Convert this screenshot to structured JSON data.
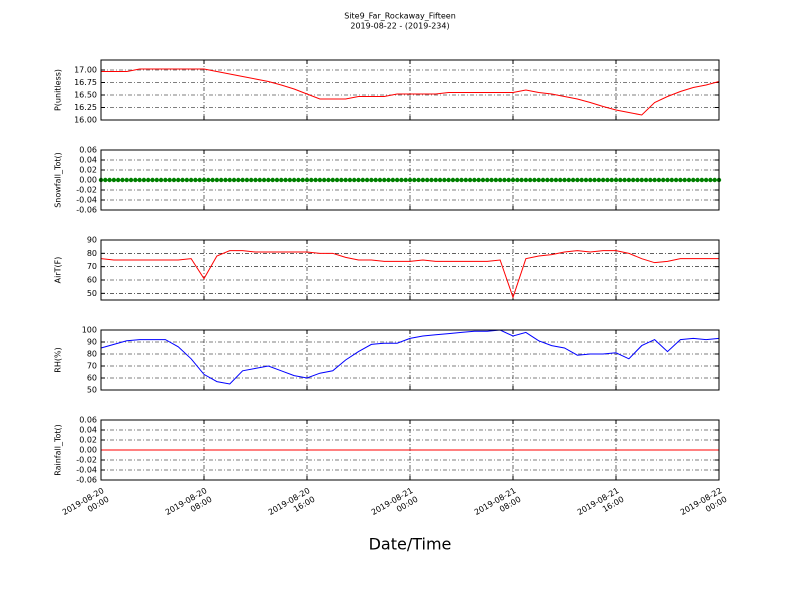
{
  "figure": {
    "title": "Site9_Far_Rockaway_Fifteen",
    "subtitle": "2019-08-22 - (2019-234)",
    "xlabel": "Date/Time"
  },
  "chart_data": [
    {
      "type": "line",
      "ylabel": "P(unitless)",
      "grid": true,
      "x": [
        "2019-08-20 00:00",
        "2019-08-20 01:00",
        "2019-08-20 02:00",
        "2019-08-20 03:00",
        "2019-08-20 04:00",
        "2019-08-20 05:00",
        "2019-08-20 06:00",
        "2019-08-20 07:00",
        "2019-08-20 08:00",
        "2019-08-20 09:00",
        "2019-08-20 10:00",
        "2019-08-20 11:00",
        "2019-08-20 12:00",
        "2019-08-20 13:00",
        "2019-08-20 14:00",
        "2019-08-20 15:00",
        "2019-08-20 16:00",
        "2019-08-20 17:00",
        "2019-08-20 18:00",
        "2019-08-20 19:00",
        "2019-08-20 20:00",
        "2019-08-20 21:00",
        "2019-08-20 22:00",
        "2019-08-20 23:00",
        "2019-08-21 00:00",
        "2019-08-21 01:00",
        "2019-08-21 02:00",
        "2019-08-21 03:00",
        "2019-08-21 04:00",
        "2019-08-21 05:00",
        "2019-08-21 06:00",
        "2019-08-21 07:00",
        "2019-08-21 08:00",
        "2019-08-21 09:00",
        "2019-08-21 10:00",
        "2019-08-21 11:00",
        "2019-08-21 12:00",
        "2019-08-21 13:00",
        "2019-08-21 14:00",
        "2019-08-21 15:00",
        "2019-08-21 16:00",
        "2019-08-21 17:00",
        "2019-08-21 18:00",
        "2019-08-21 19:00",
        "2019-08-21 20:00",
        "2019-08-21 21:00",
        "2019-08-21 22:00",
        "2019-08-21 23:00",
        "2019-08-22 00:00"
      ],
      "series": [
        {
          "color": "#ff0000",
          "values": [
            16.97,
            16.97,
            16.97,
            17.02,
            17.02,
            17.02,
            17.02,
            17.02,
            17.02,
            16.97,
            16.92,
            16.87,
            16.82,
            16.77,
            16.7,
            16.62,
            16.52,
            16.42,
            16.42,
            16.42,
            16.47,
            16.47,
            16.47,
            16.52,
            16.52,
            16.52,
            16.52,
            16.55,
            16.55,
            16.55,
            16.55,
            16.55,
            16.55,
            16.6,
            16.55,
            16.52,
            16.47,
            16.42,
            16.35,
            16.27,
            16.2,
            16.15,
            16.1,
            16.35,
            16.47,
            16.57,
            16.65,
            16.7,
            16.77
          ]
        }
      ],
      "xlim": [
        "2019-08-20 00:00",
        "2019-08-22 00:00"
      ],
      "xticks": [
        "2019-08-20 00:00",
        "2019-08-20 08:00",
        "2019-08-20 16:00",
        "2019-08-21 00:00",
        "2019-08-21 08:00",
        "2019-08-21 16:00",
        "2019-08-22 00:00"
      ],
      "ylim": [
        16.0,
        17.2
      ],
      "yticks": [
        {
          "value": 16.0,
          "label": "16.00"
        },
        16.25,
        {
          "value": 16.5,
          "label": "16.50"
        },
        16.75,
        {
          "value": 17.0,
          "label": "17.00"
        }
      ]
    },
    {
      "type": "scatter",
      "ylabel": "Snowfall_Tot()",
      "grid": true,
      "x": [
        "2019-08-20 00:00",
        "2019-08-20 01:00",
        "2019-08-20 02:00",
        "2019-08-20 03:00",
        "2019-08-20 04:00",
        "2019-08-20 05:00",
        "2019-08-20 06:00",
        "2019-08-20 07:00",
        "2019-08-20 08:00",
        "2019-08-20 09:00",
        "2019-08-20 10:00",
        "2019-08-20 11:00",
        "2019-08-20 12:00",
        "2019-08-20 13:00",
        "2019-08-20 14:00",
        "2019-08-20 15:00",
        "2019-08-20 16:00",
        "2019-08-20 17:00",
        "2019-08-20 18:00",
        "2019-08-20 19:00",
        "2019-08-20 20:00",
        "2019-08-20 21:00",
        "2019-08-20 22:00",
        "2019-08-20 23:00",
        "2019-08-21 00:00",
        "2019-08-21 01:00",
        "2019-08-21 02:00",
        "2019-08-21 03:00",
        "2019-08-21 04:00",
        "2019-08-21 05:00",
        "2019-08-21 06:00",
        "2019-08-21 07:00",
        "2019-08-21 08:00",
        "2019-08-21 09:00",
        "2019-08-21 10:00",
        "2019-08-21 11:00",
        "2019-08-21 12:00",
        "2019-08-21 13:00",
        "2019-08-21 14:00",
        "2019-08-21 15:00",
        "2019-08-21 16:00",
        "2019-08-21 17:00",
        "2019-08-21 18:00",
        "2019-08-21 19:00",
        "2019-08-21 20:00",
        "2019-08-21 21:00",
        "2019-08-21 22:00",
        "2019-08-21 23:00",
        "2019-08-22 00:00"
      ],
      "series": [
        {
          "color": "#008000",
          "values": [
            0,
            0,
            0,
            0,
            0,
            0,
            0,
            0,
            0,
            0,
            0,
            0,
            0,
            0,
            0,
            0,
            0,
            0,
            0,
            0,
            0,
            0,
            0,
            0,
            0,
            0,
            0,
            0,
            0,
            0,
            0,
            0,
            0,
            0,
            0,
            0,
            0,
            0,
            0,
            0,
            0,
            0,
            0,
            0,
            0,
            0,
            0,
            0,
            0
          ]
        }
      ],
      "xlim": [
        "2019-08-20 00:00",
        "2019-08-22 00:00"
      ],
      "xticks": [
        "2019-08-20 00:00",
        "2019-08-20 08:00",
        "2019-08-20 16:00",
        "2019-08-21 00:00",
        "2019-08-21 08:00",
        "2019-08-21 16:00",
        "2019-08-22 00:00"
      ],
      "ylim": [
        -0.06,
        0.06
      ],
      "yticks": [
        -0.06,
        -0.04,
        -0.02,
        {
          "value": 0,
          "label": "0.00"
        },
        0.02,
        0.04,
        0.06
      ]
    },
    {
      "type": "line",
      "ylabel": "AirT(F)",
      "grid": true,
      "x": [
        "2019-08-20 00:00",
        "2019-08-20 01:00",
        "2019-08-20 02:00",
        "2019-08-20 03:00",
        "2019-08-20 04:00",
        "2019-08-20 05:00",
        "2019-08-20 06:00",
        "2019-08-20 07:00",
        "2019-08-20 08:00",
        "2019-08-20 09:00",
        "2019-08-20 10:00",
        "2019-08-20 11:00",
        "2019-08-20 12:00",
        "2019-08-20 13:00",
        "2019-08-20 14:00",
        "2019-08-20 15:00",
        "2019-08-20 16:00",
        "2019-08-20 17:00",
        "2019-08-20 18:00",
        "2019-08-20 19:00",
        "2019-08-20 20:00",
        "2019-08-20 21:00",
        "2019-08-20 22:00",
        "2019-08-20 23:00",
        "2019-08-21 00:00",
        "2019-08-21 01:00",
        "2019-08-21 02:00",
        "2019-08-21 03:00",
        "2019-08-21 04:00",
        "2019-08-21 05:00",
        "2019-08-21 06:00",
        "2019-08-21 07:00",
        "2019-08-21 08:00",
        "2019-08-21 09:00",
        "2019-08-21 10:00",
        "2019-08-21 11:00",
        "2019-08-21 12:00",
        "2019-08-21 13:00",
        "2019-08-21 14:00",
        "2019-08-21 15:00",
        "2019-08-21 16:00",
        "2019-08-21 17:00",
        "2019-08-21 18:00",
        "2019-08-21 19:00",
        "2019-08-21 20:00",
        "2019-08-21 21:00",
        "2019-08-21 22:00",
        "2019-08-21 23:00",
        "2019-08-22 00:00"
      ],
      "series": [
        {
          "color": "#ff0000",
          "values": [
            76,
            75,
            75,
            75,
            75,
            75,
            75,
            76,
            61,
            78,
            82,
            82,
            81,
            81,
            81,
            81,
            81,
            80,
            80,
            77,
            75,
            75,
            74,
            74,
            74,
            75,
            74,
            74,
            74,
            74,
            74,
            75,
            47,
            76,
            78,
            79,
            81,
            82,
            81,
            82,
            82,
            80,
            76,
            73,
            74,
            76,
            76,
            76,
            76
          ]
        }
      ],
      "xlim": [
        "2019-08-20 00:00",
        "2019-08-22 00:00"
      ],
      "xticks": [
        "2019-08-20 00:00",
        "2019-08-20 08:00",
        "2019-08-20 16:00",
        "2019-08-21 00:00",
        "2019-08-21 08:00",
        "2019-08-21 16:00",
        "2019-08-22 00:00"
      ],
      "ylim": [
        45,
        90
      ],
      "yticks": [
        50,
        60,
        70,
        80,
        90
      ]
    },
    {
      "type": "line",
      "ylabel": "RH(%)",
      "grid": true,
      "x": [
        "2019-08-20 00:00",
        "2019-08-20 01:00",
        "2019-08-20 02:00",
        "2019-08-20 03:00",
        "2019-08-20 04:00",
        "2019-08-20 05:00",
        "2019-08-20 06:00",
        "2019-08-20 07:00",
        "2019-08-20 08:00",
        "2019-08-20 09:00",
        "2019-08-20 10:00",
        "2019-08-20 11:00",
        "2019-08-20 12:00",
        "2019-08-20 13:00",
        "2019-08-20 14:00",
        "2019-08-20 15:00",
        "2019-08-20 16:00",
        "2019-08-20 17:00",
        "2019-08-20 18:00",
        "2019-08-20 19:00",
        "2019-08-20 20:00",
        "2019-08-20 21:00",
        "2019-08-20 22:00",
        "2019-08-20 23:00",
        "2019-08-21 00:00",
        "2019-08-21 01:00",
        "2019-08-21 02:00",
        "2019-08-21 03:00",
        "2019-08-21 04:00",
        "2019-08-21 05:00",
        "2019-08-21 06:00",
        "2019-08-21 07:00",
        "2019-08-21 08:00",
        "2019-08-21 09:00",
        "2019-08-21 10:00",
        "2019-08-21 11:00",
        "2019-08-21 12:00",
        "2019-08-21 13:00",
        "2019-08-21 14:00",
        "2019-08-21 15:00",
        "2019-08-21 16:00",
        "2019-08-21 17:00",
        "2019-08-21 18:00",
        "2019-08-21 19:00",
        "2019-08-21 20:00",
        "2019-08-21 21:00",
        "2019-08-21 22:00",
        "2019-08-21 23:00",
        "2019-08-22 00:00"
      ],
      "series": [
        {
          "color": "#0000ff",
          "values": [
            85,
            88,
            91,
            92,
            92,
            92,
            86,
            76,
            63,
            57,
            55,
            66,
            68,
            70,
            66,
            62,
            60,
            64,
            66,
            75,
            82,
            88,
            89,
            89,
            93,
            95,
            96,
            97,
            98,
            99,
            99,
            100,
            95,
            98,
            91,
            87,
            85,
            79,
            80,
            80,
            81,
            76,
            87,
            92,
            82,
            92,
            93,
            92,
            93
          ]
        }
      ],
      "xlim": [
        "2019-08-20 00:00",
        "2019-08-22 00:00"
      ],
      "xticks": [
        "2019-08-20 00:00",
        "2019-08-20 08:00",
        "2019-08-20 16:00",
        "2019-08-21 00:00",
        "2019-08-21 08:00",
        "2019-08-21 16:00",
        "2019-08-22 00:00"
      ],
      "ylim": [
        50,
        100
      ],
      "yticks": [
        50,
        60,
        70,
        80,
        90,
        100
      ]
    },
    {
      "type": "line",
      "ylabel": "Rainfall_Tot()",
      "grid": true,
      "x": [
        "2019-08-20 00:00",
        "2019-08-20 01:00",
        "2019-08-20 02:00",
        "2019-08-20 03:00",
        "2019-08-20 04:00",
        "2019-08-20 05:00",
        "2019-08-20 06:00",
        "2019-08-20 07:00",
        "2019-08-20 08:00",
        "2019-08-20 09:00",
        "2019-08-20 10:00",
        "2019-08-20 11:00",
        "2019-08-20 12:00",
        "2019-08-20 13:00",
        "2019-08-20 14:00",
        "2019-08-20 15:00",
        "2019-08-20 16:00",
        "2019-08-20 17:00",
        "2019-08-20 18:00",
        "2019-08-20 19:00",
        "2019-08-20 20:00",
        "2019-08-20 21:00",
        "2019-08-20 22:00",
        "2019-08-20 23:00",
        "2019-08-21 00:00",
        "2019-08-21 01:00",
        "2019-08-21 02:00",
        "2019-08-21 03:00",
        "2019-08-21 04:00",
        "2019-08-21 05:00",
        "2019-08-21 06:00",
        "2019-08-21 07:00",
        "2019-08-21 08:00",
        "2019-08-21 09:00",
        "2019-08-21 10:00",
        "2019-08-21 11:00",
        "2019-08-21 12:00",
        "2019-08-21 13:00",
        "2019-08-21 14:00",
        "2019-08-21 15:00",
        "2019-08-21 16:00",
        "2019-08-21 17:00",
        "2019-08-21 18:00",
        "2019-08-21 19:00",
        "2019-08-21 20:00",
        "2019-08-21 21:00",
        "2019-08-21 22:00",
        "2019-08-21 23:00",
        "2019-08-22 00:00"
      ],
      "series": [
        {
          "color": "#ff0000",
          "values": [
            0,
            0,
            0,
            0,
            0,
            0,
            0,
            0,
            0,
            0,
            0,
            0,
            0,
            0,
            0,
            0,
            0,
            0,
            0,
            0,
            0,
            0,
            0,
            0,
            0,
            0,
            0,
            0,
            0,
            0,
            0,
            0,
            0,
            0,
            0,
            0,
            0,
            0,
            0,
            0,
            0,
            0,
            0,
            0,
            0,
            0,
            0,
            0,
            0
          ]
        }
      ],
      "xlim": [
        "2019-08-20 00:00",
        "2019-08-22 00:00"
      ],
      "xticks": [
        "2019-08-20 00:00",
        "2019-08-20 08:00",
        "2019-08-20 16:00",
        "2019-08-21 00:00",
        "2019-08-21 08:00",
        "2019-08-21 16:00",
        "2019-08-22 00:00"
      ],
      "ylim": [
        -0.06,
        0.06
      ],
      "yticks": [
        -0.06,
        -0.04,
        -0.02,
        {
          "value": 0,
          "label": "0.00"
        },
        0.02,
        0.04,
        0.06
      ]
    }
  ]
}
